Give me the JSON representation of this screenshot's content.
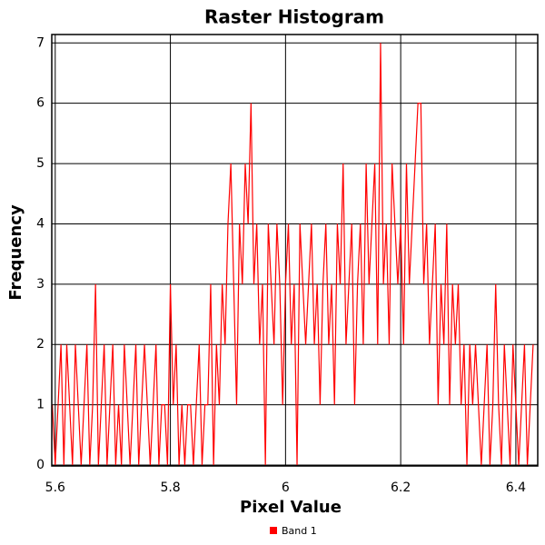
{
  "chart_data": {
    "type": "line",
    "title": "Raster Histogram",
    "x_label": "Pixel Value",
    "y_label": "Frequency",
    "x": [
      5.595,
      5.6,
      5.605,
      5.61,
      5.615,
      5.62,
      5.625,
      5.63,
      5.635,
      5.64,
      5.645,
      5.65,
      5.655,
      5.66,
      5.665,
      5.67,
      5.675,
      5.68,
      5.685,
      5.69,
      5.695,
      5.7,
      5.705,
      5.71,
      5.715,
      5.72,
      5.725,
      5.73,
      5.735,
      5.74,
      5.745,
      5.75,
      5.755,
      5.76,
      5.765,
      5.77,
      5.775,
      5.78,
      5.785,
      5.79,
      5.795,
      5.8,
      5.805,
      5.81,
      5.815,
      5.82,
      5.825,
      5.83,
      5.835,
      5.84,
      5.845,
      5.85,
      5.855,
      5.86,
      5.865,
      5.87,
      5.875,
      5.88,
      5.885,
      5.89,
      5.895,
      5.9,
      5.905,
      5.91,
      5.915,
      5.92,
      5.925,
      5.93,
      5.935,
      5.94,
      5.945,
      5.95,
      5.955,
      5.96,
      5.965,
      5.97,
      5.975,
      5.98,
      5.985,
      5.99,
      5.995,
      6.0,
      6.005,
      6.01,
      6.015,
      6.02,
      6.025,
      6.03,
      6.035,
      6.04,
      6.045,
      6.05,
      6.055,
      6.06,
      6.065,
      6.07,
      6.075,
      6.08,
      6.085,
      6.09,
      6.095,
      6.1,
      6.105,
      6.11,
      6.115,
      6.12,
      6.125,
      6.13,
      6.135,
      6.14,
      6.145,
      6.15,
      6.155,
      6.16,
      6.165,
      6.17,
      6.175,
      6.18,
      6.185,
      6.19,
      6.195,
      6.2,
      6.205,
      6.21,
      6.215,
      6.22,
      6.225,
      6.23,
      6.235,
      6.24,
      6.245,
      6.25,
      6.255,
      6.26,
      6.265,
      6.27,
      6.275,
      6.28,
      6.285,
      6.29,
      6.295,
      6.3,
      6.305,
      6.31,
      6.315,
      6.32,
      6.325,
      6.33,
      6.335,
      6.34,
      6.345,
      6.35,
      6.355,
      6.36,
      6.365,
      6.37,
      6.375,
      6.38,
      6.385,
      6.39,
      6.395,
      6.4,
      6.405,
      6.41,
      6.415,
      6.42,
      6.425,
      6.43
    ],
    "series": [
      {
        "name": "Band 1",
        "color": "#ff0000",
        "values": [
          1,
          0,
          1,
          2,
          0,
          2,
          1,
          0,
          2,
          1,
          0,
          1,
          2,
          0,
          1,
          3,
          0,
          1,
          2,
          0,
          1,
          2,
          0,
          1,
          0,
          2,
          1,
          0,
          1,
          2,
          0,
          1,
          2,
          1,
          0,
          1,
          2,
          0,
          1,
          1,
          0,
          3,
          1,
          2,
          0,
          1,
          0,
          1,
          1,
          0,
          1,
          2,
          0,
          1,
          1,
          3,
          0,
          2,
          1,
          3,
          2,
          4,
          5,
          3,
          1,
          4,
          3,
          5,
          4,
          6,
          3,
          4,
          2,
          3,
          0,
          4,
          3,
          2,
          4,
          3,
          1,
          3,
          4,
          2,
          3,
          0,
          4,
          3,
          2,
          3,
          4,
          2,
          3,
          1,
          3,
          4,
          2,
          3,
          1,
          4,
          3,
          5,
          2,
          3,
          4,
          1,
          3,
          4,
          2,
          5,
          3,
          4,
          5,
          2,
          7,
          3,
          4,
          2,
          5,
          4,
          3,
          4,
          2,
          5,
          3,
          4,
          5,
          6,
          6,
          3,
          4,
          2,
          3,
          4,
          1,
          3,
          2,
          4,
          1,
          3,
          2,
          3,
          1,
          2,
          0,
          2,
          1,
          2,
          1,
          0,
          1,
          2,
          0,
          1,
          3,
          1,
          0,
          2,
          1,
          0,
          2,
          1,
          0,
          1,
          2,
          0,
          1,
          2
        ]
      }
    ],
    "xlim": [
      5.594,
      6.438
    ],
    "ylim": [
      -0.015,
      7.14
    ],
    "xticks": [
      5.6,
      5.8,
      6,
      6.2,
      6.4
    ],
    "yticks": [
      0,
      1,
      2,
      3,
      4,
      5,
      6,
      7
    ],
    "grid": true,
    "legend": "bottom"
  }
}
